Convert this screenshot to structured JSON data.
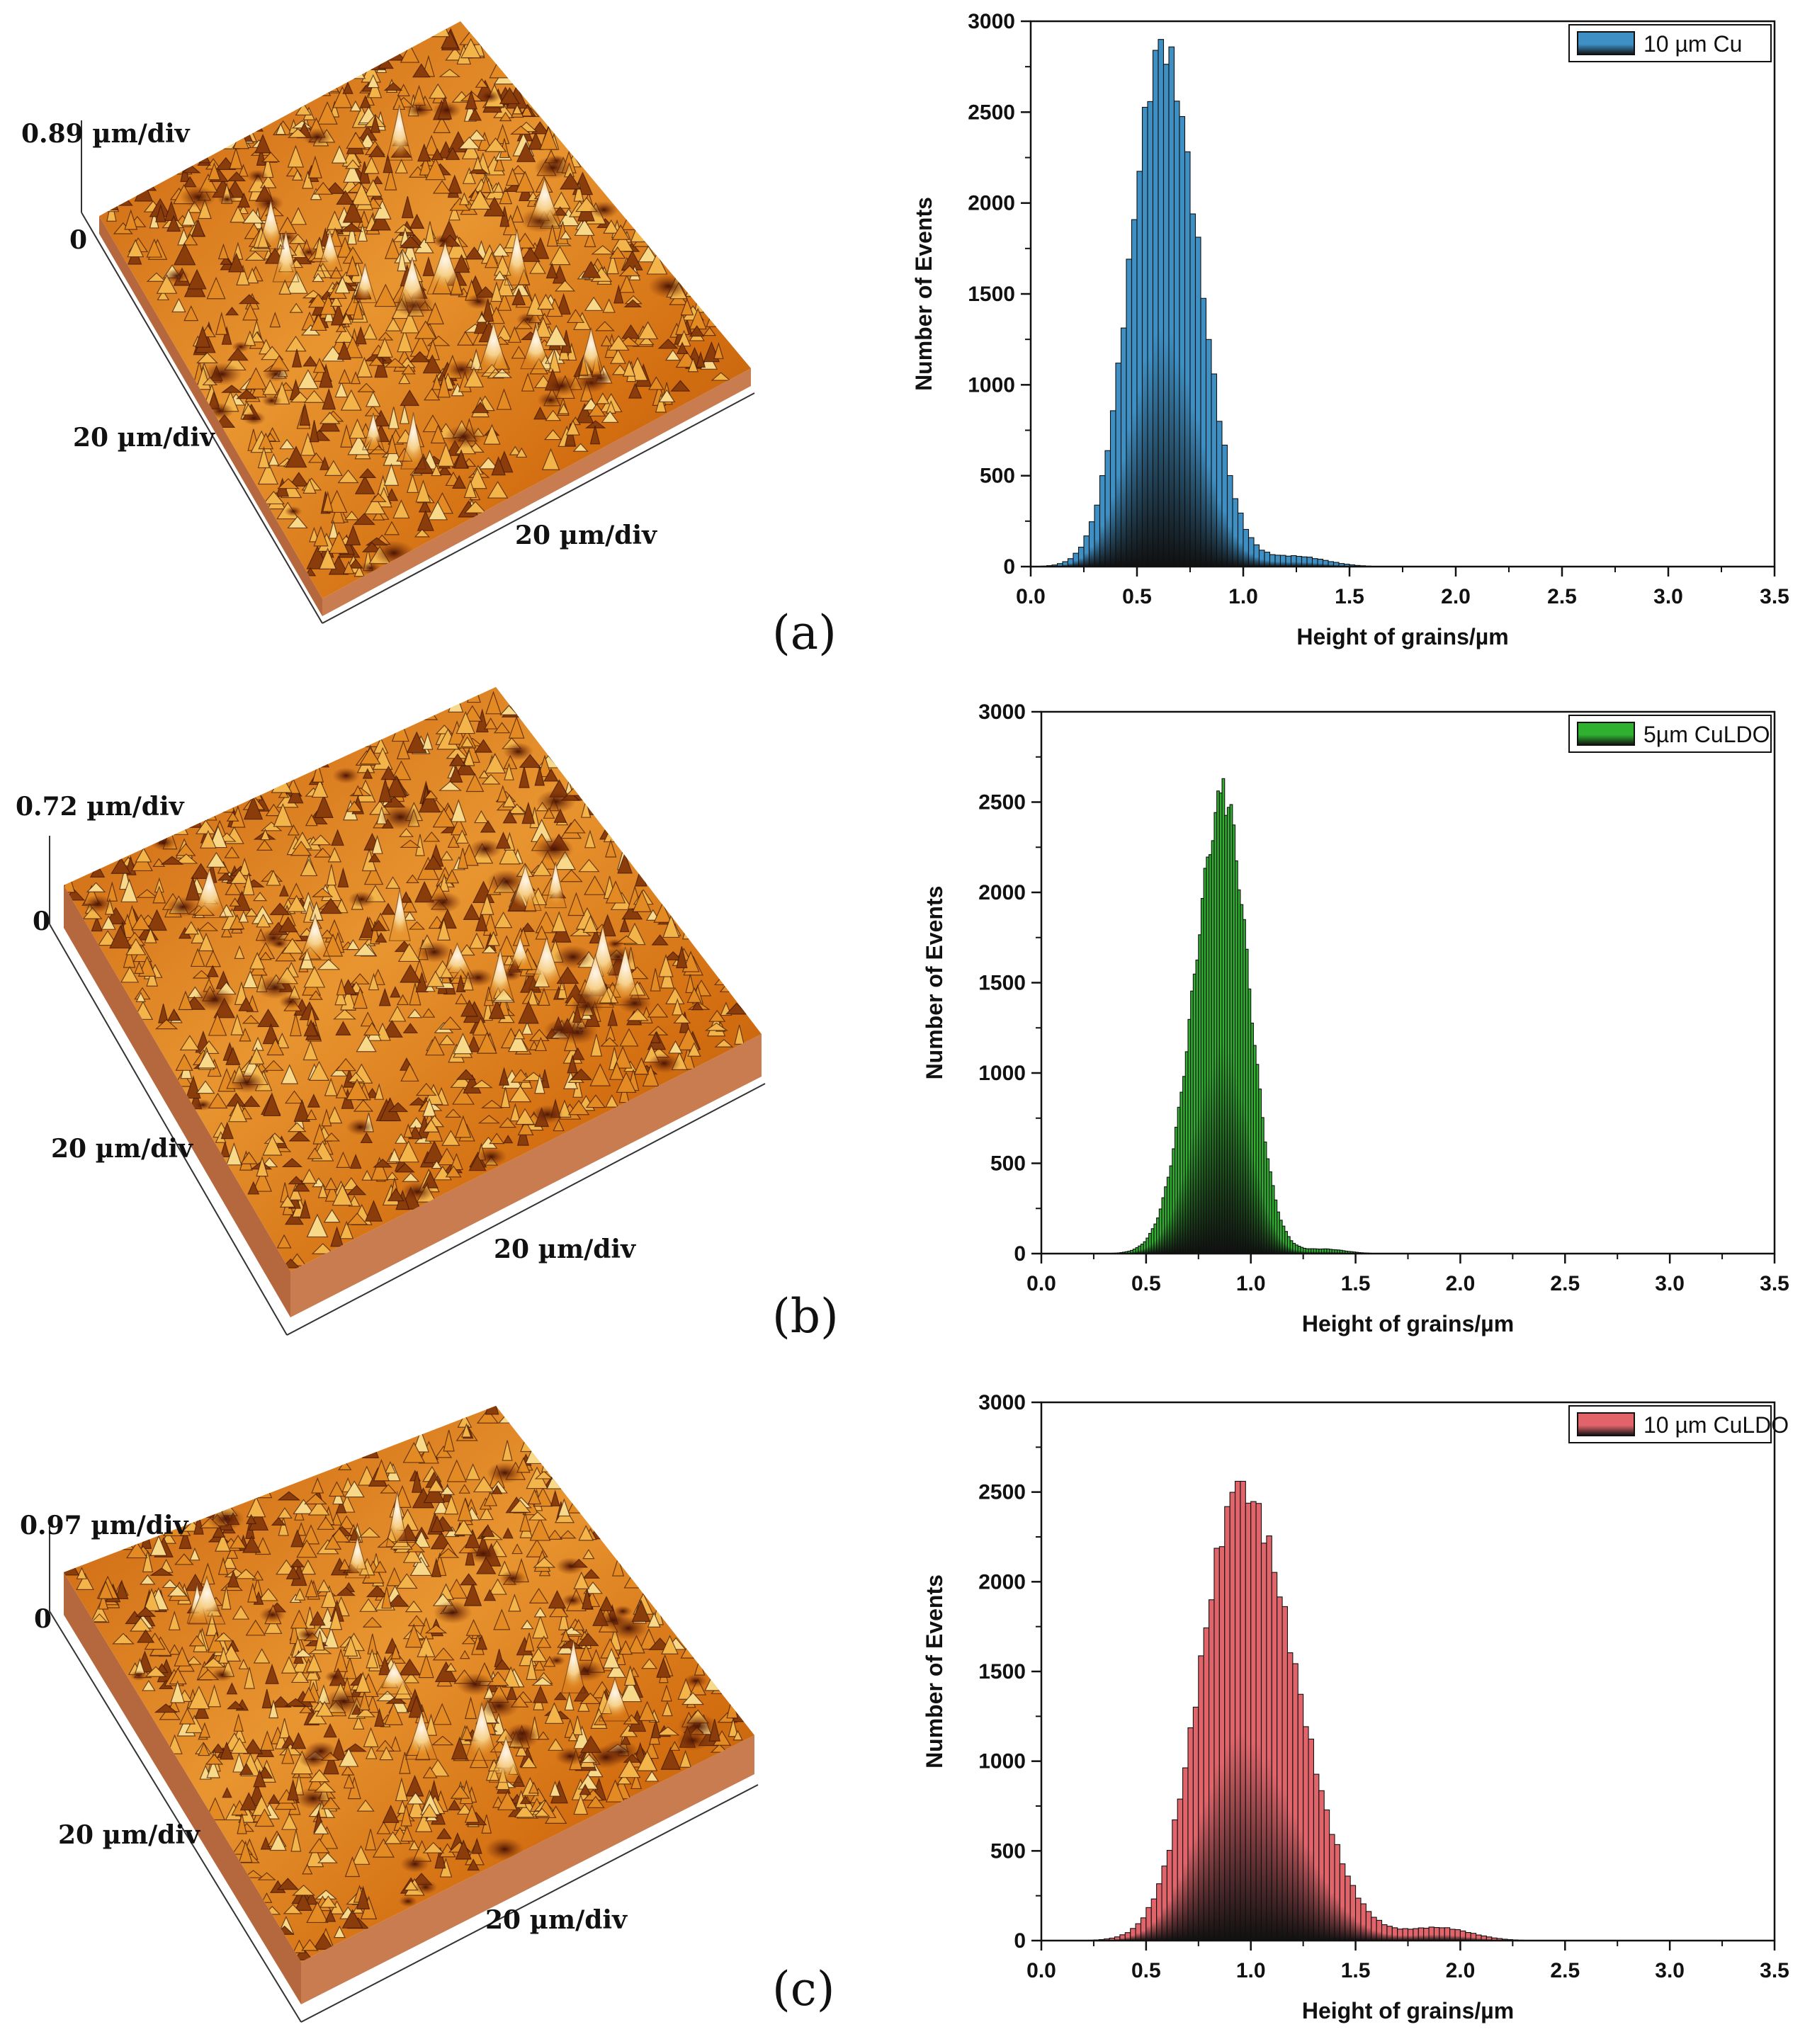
{
  "panels": [
    {
      "id": "a",
      "label": "(a)",
      "afm": {
        "z_scale": "0.89 µm/div",
        "zero": "0",
        "xy_left": "20 µm/div",
        "xy_right": "20 µm/div"
      }
    },
    {
      "id": "b",
      "label": "(b)",
      "afm": {
        "z_scale": "0.72 µm/div",
        "zero": "0",
        "xy_left": "20 µm/div",
        "xy_right": "20 µm/div"
      }
    },
    {
      "id": "c",
      "label": "(c)",
      "afm": {
        "z_scale": "0.97 µm/div",
        "zero": "0",
        "xy_left": "20 µm/div",
        "xy_right": "20 µm/div"
      }
    }
  ],
  "colors": {
    "surface_dark": "#5a1e0a",
    "surface_mid": "#d9780f",
    "surface_light": "#f7c65a",
    "surface_peak": "#fff3e0",
    "side_wall": "#c4784c",
    "blue": "#3d8fc4",
    "green": "#2fb02f",
    "red": "#e0646a"
  },
  "chart_data": [
    {
      "type": "bar",
      "series_name": "10 µm Cu",
      "color": "#3d8fc4",
      "xlabel": "Height of grains/µm",
      "ylabel": "Number of Events",
      "xlim": [
        0,
        3.5
      ],
      "ylim": [
        0,
        3000
      ],
      "x_ticks": [
        "0.0",
        "0.5",
        "1.0",
        "1.5",
        "2.0",
        "2.5",
        "3.0",
        "3.5"
      ],
      "y_ticks": [
        "0",
        "500",
        "1000",
        "1500",
        "2000",
        "2500",
        "3000"
      ],
      "peak_x": 0.62,
      "peak_y": 2900,
      "bin_width": 0.025,
      "histogram": {
        "mu": 0.62,
        "sigma_left": 0.15,
        "sigma_right": 0.17,
        "peak": 2850,
        "tail_amp": 55,
        "tail_mu": 1.25,
        "tail_sigma": 0.14
      },
      "legend": "top-right"
    },
    {
      "type": "bar",
      "series_name": "5µm CuLDO",
      "color": "#2fb02f",
      "xlabel": "Height of grains/µm",
      "ylabel": "Number of Events",
      "xlim": [
        0,
        3.5
      ],
      "ylim": [
        0,
        3000
      ],
      "x_ticks": [
        "0.0",
        "0.5",
        "1.0",
        "1.5",
        "2.0",
        "2.5",
        "3.0",
        "3.5"
      ],
      "y_ticks": [
        "0",
        "500",
        "1000",
        "1500",
        "2000",
        "2500",
        "3000"
      ],
      "peak_x": 0.87,
      "peak_y": 2630,
      "bin_width": 0.0125,
      "histogram": {
        "mu": 0.87,
        "sigma_left": 0.14,
        "sigma_right": 0.12,
        "peak": 2520,
        "tail_amp": 25,
        "tail_mu": 1.35,
        "tail_sigma": 0.1
      },
      "legend": "top-right"
    },
    {
      "type": "bar",
      "series_name": "10 µm CuLDO",
      "color": "#e0646a",
      "xlabel": "Height of grains/µm",
      "ylabel": "Number of Events",
      "xlim": [
        0,
        3.5
      ],
      "ylim": [
        0,
        3000
      ],
      "x_ticks": [
        "0.0",
        "0.5",
        "1.0",
        "1.5",
        "2.0",
        "2.5",
        "3.0",
        "3.5"
      ],
      "y_ticks": [
        "0",
        "500",
        "1000",
        "1500",
        "2000",
        "2500",
        "3000"
      ],
      "peak_x": 0.95,
      "peak_y": 2560,
      "bin_width": 0.025,
      "histogram": {
        "mu": 0.95,
        "sigma_left": 0.19,
        "sigma_right": 0.26,
        "peak": 2520,
        "tail_amp": 70,
        "tail_mu": 1.9,
        "tail_sigma": 0.15
      },
      "legend": "top-right"
    }
  ]
}
